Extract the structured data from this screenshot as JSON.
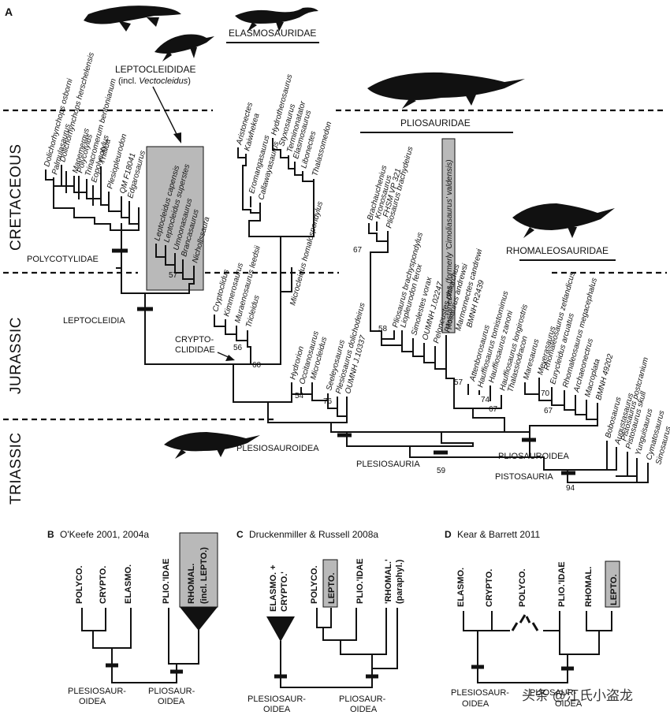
{
  "panel_a": {
    "label": "A",
    "eras": [
      {
        "id": "cretaceous",
        "label": "CRETACEOUS"
      },
      {
        "id": "jurassic",
        "label": "JURASSIC"
      },
      {
        "id": "triassic",
        "label": "TRIASSIC"
      }
    ],
    "clades": {
      "elasmosauridae": "ELASMOSAURIDAE",
      "leptocleididae": "LEPTOCLEIDIDAE",
      "leptocleididae_note_pre": "(incl. ",
      "leptocleididae_note_taxon": "Vectocleidus",
      "leptocleididae_note_post": ")",
      "pliosauridae": "PLIOSAURIDAE",
      "rhomaleosauridae": "RHOMALEOSAURIDAE",
      "polycotylidae": "POLYCOTYLIDAE",
      "leptocleidia": "LEPTOCLEIDIA",
      "cryptoclididae_1": "CRYPTO-",
      "cryptoclididae_2": "CLIDIDAE",
      "plesiosauroidea": "PLESIOSAUROIDEA",
      "plesiosauria": "PLESIOSAURIA",
      "pliosauroidea": "PLIOSAUROIDEA",
      "pistosauria": "PISTOSAURIA"
    },
    "node_values": {
      "n57a": "57",
      "n56": "56",
      "n60": "60",
      "n54": "54",
      "n76": "76",
      "n67a": "67",
      "n58": "58",
      "n57b": "57",
      "n74": "74",
      "n67b": "67",
      "n70": "70",
      "n67c": "67",
      "n59": "59",
      "n94": "94"
    },
    "taxa": {
      "polycotylids": [
        "Dolichorhynchops osborni",
        "Palmulasaurus",
        "Dolichorhynchops herschelensis",
        "Manemergus",
        "Polycotylus",
        "Trinacromerum bentonianum",
        "Eopolycotylus",
        "Thililua",
        "Plesiopleurodon",
        "QM F18041",
        "Edgarosaurus"
      ],
      "leptocleidids": [
        "Leptocleidus capensis",
        "Leptocleidus superstes",
        "Umoonasaurus",
        "Brancasaurus",
        "Nichollssaura"
      ],
      "elasmosaurids": [
        "Aristonectes",
        "Kaiwhekea",
        "Eromangasaurus",
        "Callawayasaurus",
        "Hydrotherosaurus",
        "Styxosaurus",
        "Terminonatator",
        "Elasmosaurus",
        "Libonectes",
        "Thalassomedon"
      ],
      "cryptoclidids": [
        "Cryptoclidus",
        "Kimmerosaurus",
        "Muraenosaurus leedsii",
        "Tricleidus",
        "Microcleidus homalospondylus",
        "Hydrorion",
        "Occitanosaurus",
        "Microcleidus",
        "Seeleyosaurus",
        "Plesiosaurus dolichodeirus",
        "OUMNH J.10337"
      ],
      "pliosaurids": [
        "Brachauchenius",
        "Kronosaurus",
        "FHSM VP 321",
        "Pliosaurus brachydeirus",
        "Pliosaurus brachyspondylus",
        "Liopleurodon ferox",
        "Simolestes vorax",
        "OUMNH J.02247",
        "Peloneustes philarchus",
        "Pliosaurus andrewsi",
        "Marmornectes candrewi",
        "BMNH R2439",
        "Attenborosaurus",
        "Hauffiosaurus tomistomimus",
        "Hauffiosaurus zanoni",
        "Hauffiosaurus longirostris",
        "Thalassiodracon"
      ],
      "highlight_taxon": "Hastanectes (formerly 'Cimoliasaurus' valdensis)",
      "rhomaleosaurids": [
        "Maresaurus",
        "Meyerasaurus",
        "Rhomaleosaurus zetlandicus",
        "Eurycleidus arcuatus",
        "Rhomaleosaurus megacephalus",
        "Archaeonectrus",
        "Macroplata",
        "BMNH 49202"
      ],
      "pistosaurs": [
        "Bobosaurus",
        "Augustasaurus",
        "Pistosaurus postcranium",
        "Pistosaurus skull",
        "Yunguisaurus",
        "Cymatosaurus",
        "Sinosaurus"
      ]
    }
  },
  "panel_b": {
    "letter": "B",
    "title": "O'Keefe 2001, 2004a",
    "leaves": [
      "POLYCO.",
      "CRYPTO.",
      "ELASMO.",
      "PLIO.'IDAE"
    ],
    "boxed_leaf_1": "RHOMAL.",
    "boxed_leaf_2": "(incl. LEPTO.)",
    "bottom_left_1": "PLESIOSAUR-",
    "bottom_left_2": "OIDEA",
    "bottom_right_1": "PLIOSAUR-",
    "bottom_right_2": "OIDEA"
  },
  "panel_c": {
    "letter": "C",
    "title": "Druckenmiller & Russell 2008a",
    "wedge_leaf_1": "ELASMO. +",
    "wedge_leaf_2": "CRYPTO.'",
    "leaves": [
      "POLYCO.",
      "LEPTO.",
      "PLIO.'IDAE"
    ],
    "rhomal_1": "'RHOMAL.'",
    "rhomal_2": "(paraphyl.)",
    "bottom_left_1": "PLESIOSAUR-",
    "bottom_left_2": "OIDEA",
    "bottom_right_1": "PLIOSAUR-",
    "bottom_right_2": "OIDEA"
  },
  "panel_d": {
    "letter": "D",
    "title": "Kear & Barrett 2011",
    "leaves": [
      "ELASMO.",
      "CRYPTO.",
      "POLYCO.",
      "PLIO.'IDAE",
      "RHOMAL.",
      "LEPTO."
    ],
    "bottom_left_1": "PLESIOSAUR-",
    "bottom_left_2": "OIDEA",
    "bottom_right": "PLIOSAUR-",
    "bottom_right_2": "OIDEA"
  },
  "watermark": "头条 @江氏小盗龙",
  "colors": {
    "highlight_box": "#b9b9b9",
    "ink": "#111111"
  }
}
